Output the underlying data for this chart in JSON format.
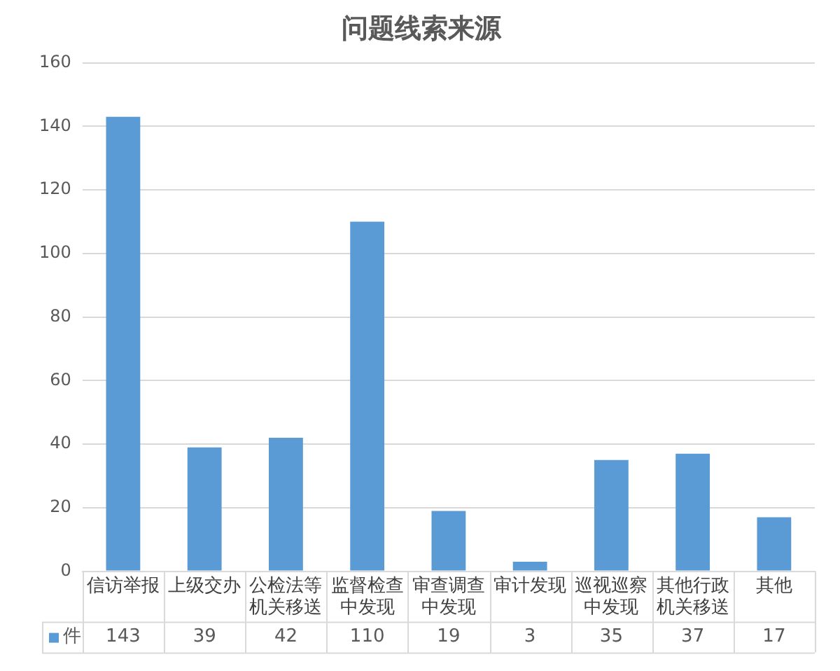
{
  "chart_data": {
    "type": "bar",
    "title": "问题线索来源",
    "categories": [
      "信访举报",
      "上级交办",
      "公检法等机关移送",
      "监督检查中发现",
      "审查调查中发现",
      "审计发现",
      "巡视巡察中发现",
      "其他行政机关移送",
      "其他"
    ],
    "series": [
      {
        "name": "件",
        "color": "#5b9bd5",
        "values": [
          143,
          39,
          42,
          110,
          19,
          3,
          35,
          37,
          17
        ]
      }
    ],
    "ylim": [
      0,
      160
    ],
    "yticks": [
      0,
      20,
      40,
      60,
      80,
      100,
      120,
      140,
      160
    ],
    "grid": "y",
    "data_labels": true
  }
}
